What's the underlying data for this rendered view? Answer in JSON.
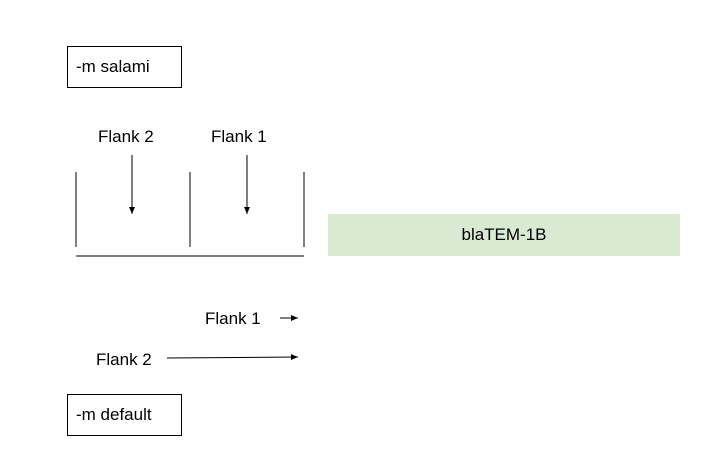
{
  "modes": {
    "top": "-m salami",
    "bottom": "-m default"
  },
  "salami_labels": {
    "flank2": "Flank 2",
    "flank1": "Flank 1"
  },
  "default_labels": {
    "flank1": "Flank 1",
    "flank2": "Flank 2"
  },
  "gene": {
    "name": "blaTEM-1B",
    "color": "#d9ead3"
  }
}
